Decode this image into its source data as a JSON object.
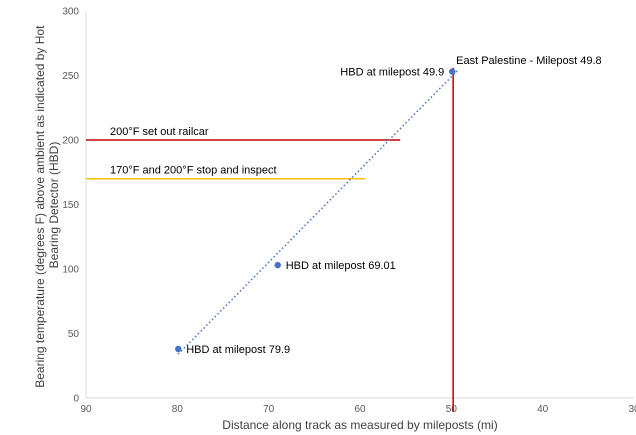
{
  "chart_data": {
    "type": "scatter",
    "xlabel": "Distance along track as measured by mileposts (mi)",
    "ylabel_lines": [
      "Bearing temperature (degrees F) above ambient as indicated by Hot",
      "Bearing Detector (HBD)"
    ],
    "xlim": [
      90,
      30
    ],
    "ylim": [
      0,
      300
    ],
    "x_reversed": true,
    "x_ticks": [
      90,
      80,
      70,
      60,
      50,
      40,
      30
    ],
    "y_ticks": [
      0,
      50,
      100,
      150,
      200,
      250,
      300
    ],
    "grid": false,
    "series": [
      {
        "points": [
          {
            "x": 79.9,
            "y": 38,
            "label": "HBD at milepost 79.9"
          },
          {
            "x": 69.01,
            "y": 103,
            "label": "HBD at milepost 69.01"
          },
          {
            "x": 49.9,
            "y": 253,
            "label": "HBD at milepost 49.9"
          }
        ],
        "color": "#4472C4"
      }
    ],
    "trendline": {
      "style": "dotted",
      "color": "#4472C4",
      "from": {
        "x": 79.9,
        "y": 34
      },
      "to": {
        "x": 49.3,
        "y": 254
      }
    },
    "thresholds": [
      {
        "y": 200,
        "label": "200°F set out railcar",
        "color": "#C00000",
        "x_from": 90,
        "x_to": 55.6
      },
      {
        "y": 170,
        "label": "170°F and 200°F stop and inspect",
        "color": "#FFC000",
        "x_from": 90,
        "x_to": 59.4
      }
    ],
    "vertical_markers": [
      {
        "x": 49.8,
        "label": "East Palestine - Milepost 49.8",
        "color": "#C00000"
      }
    ]
  }
}
